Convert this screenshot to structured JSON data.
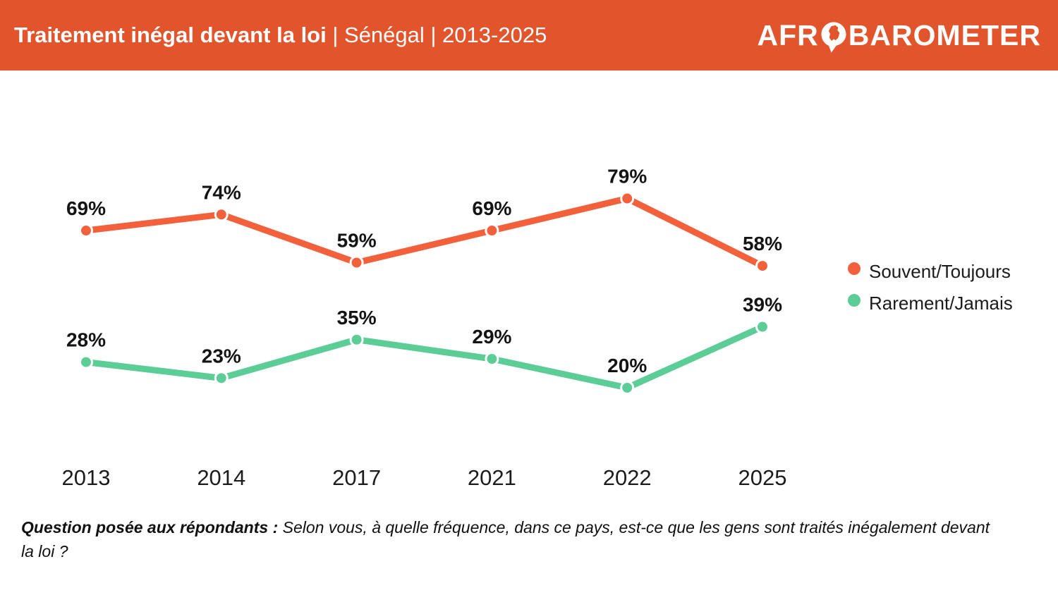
{
  "header": {
    "title_bold": "Traitement inégal devant la loi",
    "title_rest": " | Sénégal | 2013-2025",
    "logo_left": "AFR",
    "logo_right": "BAROMETER",
    "bg_color": "#E2552C"
  },
  "chart_data": {
    "type": "line",
    "title": "Traitement inégal devant la loi | Sénégal | 2013-2025",
    "categories": [
      "2013",
      "2014",
      "2017",
      "2021",
      "2022",
      "2025"
    ],
    "series": [
      {
        "name": "Souvent/Toujours",
        "color": "#F2613C",
        "values": [
          69,
          74,
          59,
          69,
          79,
          58
        ]
      },
      {
        "name": "Rarement/Jamais",
        "color": "#5CCD96",
        "values": [
          28,
          23,
          35,
          29,
          20,
          39
        ]
      }
    ],
    "ylim": [
      0,
      100
    ],
    "xlabel": "",
    "ylabel": "",
    "grid": false,
    "legend_position": "right",
    "label_format": "percent",
    "marker": "circle-white-ring"
  },
  "legend": {
    "items": [
      {
        "label": "Souvent/Toujours",
        "color": "#F2613C"
      },
      {
        "label": "Rarement/Jamais",
        "color": "#5CCD96"
      }
    ]
  },
  "footer": {
    "question_label": "Question posée aux répondants :",
    "question_text": "Selon vous, à quelle fréquence, dans ce pays, est-ce que les gens sont traités inégalement devant la loi ?"
  }
}
